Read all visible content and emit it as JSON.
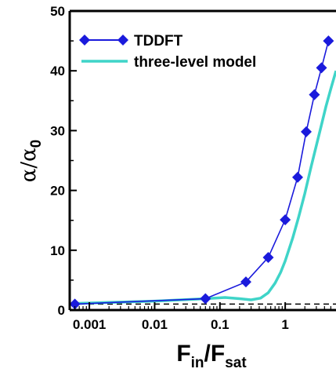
{
  "chart_data": {
    "type": "line",
    "xscale": "log",
    "xlim": [
      0.0005,
      6
    ],
    "ylim": [
      0,
      50
    ],
    "x_ticks": [
      {
        "value": 0.001,
        "label": "0.001"
      },
      {
        "value": 0.01,
        "label": "0.01"
      },
      {
        "value": 0.1,
        "label": "0.1"
      },
      {
        "value": 1,
        "label": "1"
      }
    ],
    "y_ticks": [
      {
        "value": 0,
        "label": "0"
      },
      {
        "value": 10,
        "label": "10"
      },
      {
        "value": 20,
        "label": "20"
      },
      {
        "value": 30,
        "label": "30"
      },
      {
        "value": 40,
        "label": "40"
      },
      {
        "value": 50,
        "label": "50"
      }
    ],
    "xlabel": {
      "main": "F",
      "sub1": "in",
      "sep": "/F",
      "sub2": "sat"
    },
    "ylabel": {
      "main": "α/α",
      "sub": "0"
    },
    "legend_position": "top-left",
    "reference_line": {
      "y": 1,
      "style": "dashed"
    },
    "series": [
      {
        "name": "TDDFT",
        "color": "#1a1adc",
        "marker": "diamond",
        "x": [
          0.0006,
          0.06,
          0.25,
          0.55,
          1.0,
          1.55,
          2.1,
          2.8,
          3.6,
          4.6
        ],
        "y": [
          1.0,
          1.9,
          4.7,
          8.8,
          15.1,
          22.2,
          29.8,
          36.0,
          40.5,
          45.0
        ]
      },
      {
        "name": "three-level model",
        "color": "#3fd4c8",
        "marker": "none",
        "x": [
          0.0006,
          0.01,
          0.06,
          0.12,
          0.2,
          0.3,
          0.42,
          0.55,
          0.7,
          0.85,
          1.0,
          1.3,
          1.6,
          2.0,
          2.5,
          3.0,
          3.6,
          4.2,
          5.0,
          6.0
        ],
        "y": [
          1.1,
          1.5,
          1.9,
          2.1,
          1.9,
          1.7,
          2.0,
          2.9,
          4.5,
          6.3,
          8.2,
          12.0,
          15.5,
          19.5,
          24.0,
          27.5,
          31.0,
          34.0,
          37.0,
          40.0
        ]
      }
    ]
  }
}
